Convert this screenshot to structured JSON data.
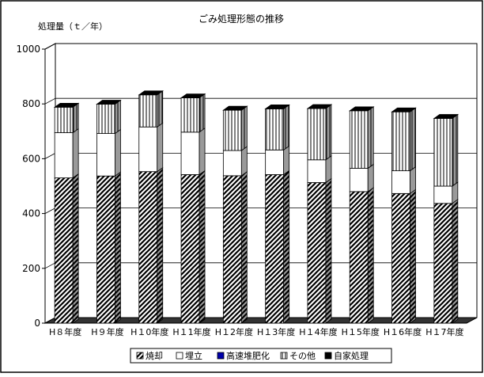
{
  "chart_data": {
    "type": "bar",
    "stacked": true,
    "three_d": true,
    "title": "ごみ処理形態の推移",
    "ylabel": "処理量（ｔ／年）",
    "xlabel": "",
    "ylim": [
      0,
      1000
    ],
    "yticks": [
      0,
      200,
      400,
      600,
      800,
      1000
    ],
    "grid": true,
    "legend_position": "bottom",
    "categories": [
      "H８年度",
      "H９年度",
      "H１0年度",
      "H１1年度",
      "H１2年度",
      "H１3年度",
      "H１4年度",
      "H１5年度",
      "H１6年度",
      "H１7年度"
    ],
    "series": [
      {
        "name": "焼却",
        "pattern": "diagonal-hatch",
        "color": "#000000",
        "values": [
          530,
          537,
          553,
          542,
          538,
          542,
          513,
          480,
          473,
          437
        ]
      },
      {
        "name": "埋立",
        "pattern": "white",
        "color": "#ffffff",
        "values": [
          165,
          155,
          163,
          155,
          92,
          90,
          83,
          85,
          83,
          63
        ]
      },
      {
        "name": "高速堆肥化",
        "pattern": "solid",
        "color": "#0000aa",
        "values": [
          0,
          0,
          0,
          0,
          0,
          0,
          0,
          0,
          0,
          0
        ]
      },
      {
        "name": "その他",
        "pattern": "vertical-lines",
        "color": "#000000",
        "values": [
          93,
          107,
          117,
          125,
          147,
          150,
          187,
          210,
          215,
          247
        ]
      },
      {
        "name": "自家処理",
        "pattern": "solid",
        "color": "#000000",
        "values": [
          0,
          0,
          0,
          0,
          0,
          0,
          0,
          0,
          0,
          0
        ]
      }
    ]
  }
}
